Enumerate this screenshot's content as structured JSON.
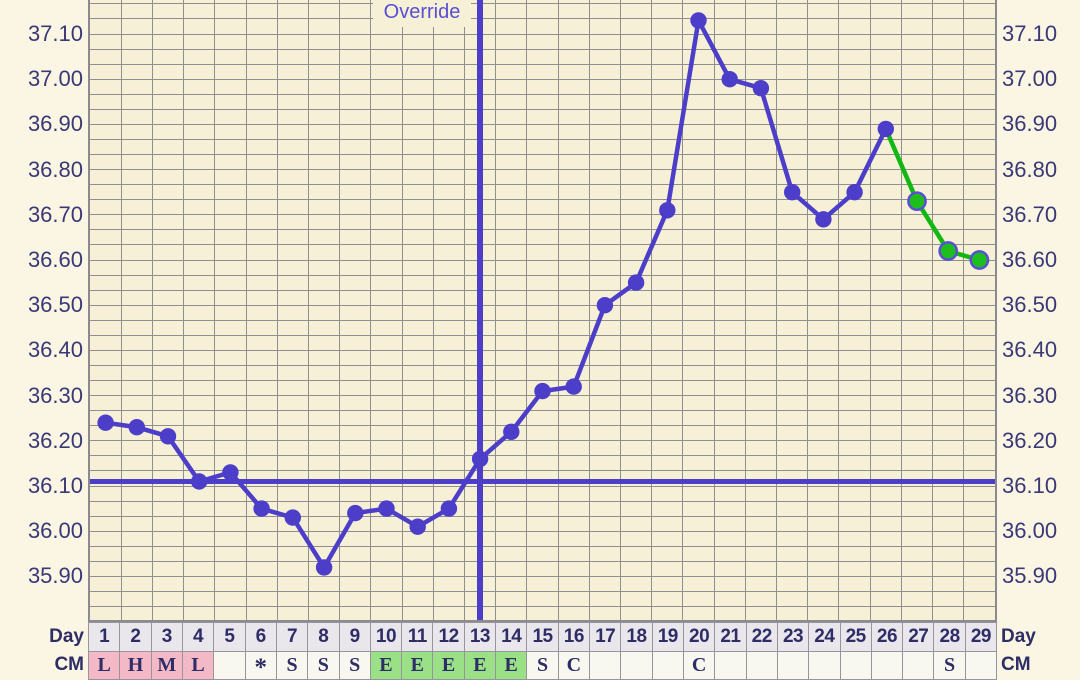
{
  "override": {
    "label": "Override"
  },
  "axis": {
    "y_ticks": [
      "37.10",
      "37.00",
      "36.90",
      "36.80",
      "36.70",
      "36.60",
      "36.50",
      "36.40",
      "36.30",
      "36.20",
      "36.10",
      "36.00",
      "35.90"
    ],
    "day_header_left": "Day",
    "day_header_right": "Day",
    "cm_header_left": "CM",
    "cm_header_right": "CM"
  },
  "days": [
    "1",
    "2",
    "3",
    "4",
    "5",
    "6",
    "7",
    "8",
    "9",
    "10",
    "11",
    "12",
    "13",
    "14",
    "15",
    "16",
    "17",
    "18",
    "19",
    "20",
    "21",
    "22",
    "23",
    "24",
    "25",
    "26",
    "27",
    "28",
    "29"
  ],
  "cm_codes": [
    "L",
    "H",
    "M",
    "L",
    "",
    "*",
    "S",
    "S",
    "S",
    "E",
    "E",
    "E",
    "E",
    "E",
    "S",
    "C",
    "",
    "",
    "",
    "C",
    "",
    "",
    "",
    "",
    "",
    "",
    "",
    "S",
    ""
  ],
  "cm_cell_styles": [
    "pink",
    "pink",
    "pink",
    "pink",
    "plain",
    "plain",
    "plain",
    "plain",
    "plain",
    "green",
    "green",
    "green",
    "green",
    "green",
    "plain",
    "plain",
    "plain",
    "plain",
    "plain",
    "plain",
    "plain",
    "plain",
    "plain",
    "plain",
    "plain",
    "plain",
    "plain",
    "plain",
    "plain"
  ],
  "colors": {
    "indigo_line": "#4c3ec8",
    "green_line": "#13b713",
    "green_dot_fill": "#1fbe1f",
    "green_dot_ring": "#5a4fd2",
    "navy_text": "#2f2d66",
    "tick_text": "#3a3876",
    "override_text": "#5a4ed2",
    "plot_bg": "#f5f0d6",
    "page_bg": "#faf6e3",
    "grid": "#908e8e",
    "day_cell_bg": "#e9e7ec",
    "cm_plain_bg": "#f8f8f0",
    "cm_pink_bg": "#f3b9c7",
    "cm_green_bg": "#99e087"
  },
  "chart_data": {
    "type": "line",
    "title": "",
    "xlabel": "Day",
    "ylabel": "",
    "x": [
      1,
      2,
      3,
      4,
      5,
      6,
      7,
      8,
      9,
      10,
      11,
      12,
      13,
      14,
      15,
      16,
      17,
      18,
      19,
      20,
      21,
      22,
      23,
      24,
      25,
      26,
      27,
      28,
      29
    ],
    "series": [
      {
        "name": "temperature_c",
        "values": [
          36.24,
          36.23,
          36.21,
          36.11,
          36.13,
          36.05,
          36.03,
          35.92,
          36.04,
          36.05,
          36.01,
          36.05,
          36.16,
          36.22,
          36.31,
          36.32,
          36.5,
          36.55,
          36.71,
          37.13,
          37.0,
          36.98,
          36.75,
          36.69,
          36.75,
          36.89,
          36.73,
          36.62,
          36.6
        ]
      }
    ],
    "coverline_value": 36.11,
    "override_line_day": 13,
    "override_annotation": "Override",
    "green_days": [
      27,
      28,
      29
    ],
    "y_ticks": [
      37.1,
      37.0,
      36.9,
      36.8,
      36.7,
      36.6,
      36.5,
      36.4,
      36.3,
      36.2,
      36.1,
      36.0,
      35.9
    ],
    "ylim_visible": [
      35.83,
      37.17
    ],
    "grid": true,
    "legend": "none",
    "cm_row_codes": [
      "L",
      "H",
      "M",
      "L",
      "",
      "*",
      "S",
      "S",
      "S",
      "E",
      "E",
      "E",
      "E",
      "E",
      "S",
      "C",
      "",
      "",
      "",
      "C",
      "",
      "",
      "",
      "",
      "",
      "",
      "",
      "S",
      ""
    ]
  }
}
